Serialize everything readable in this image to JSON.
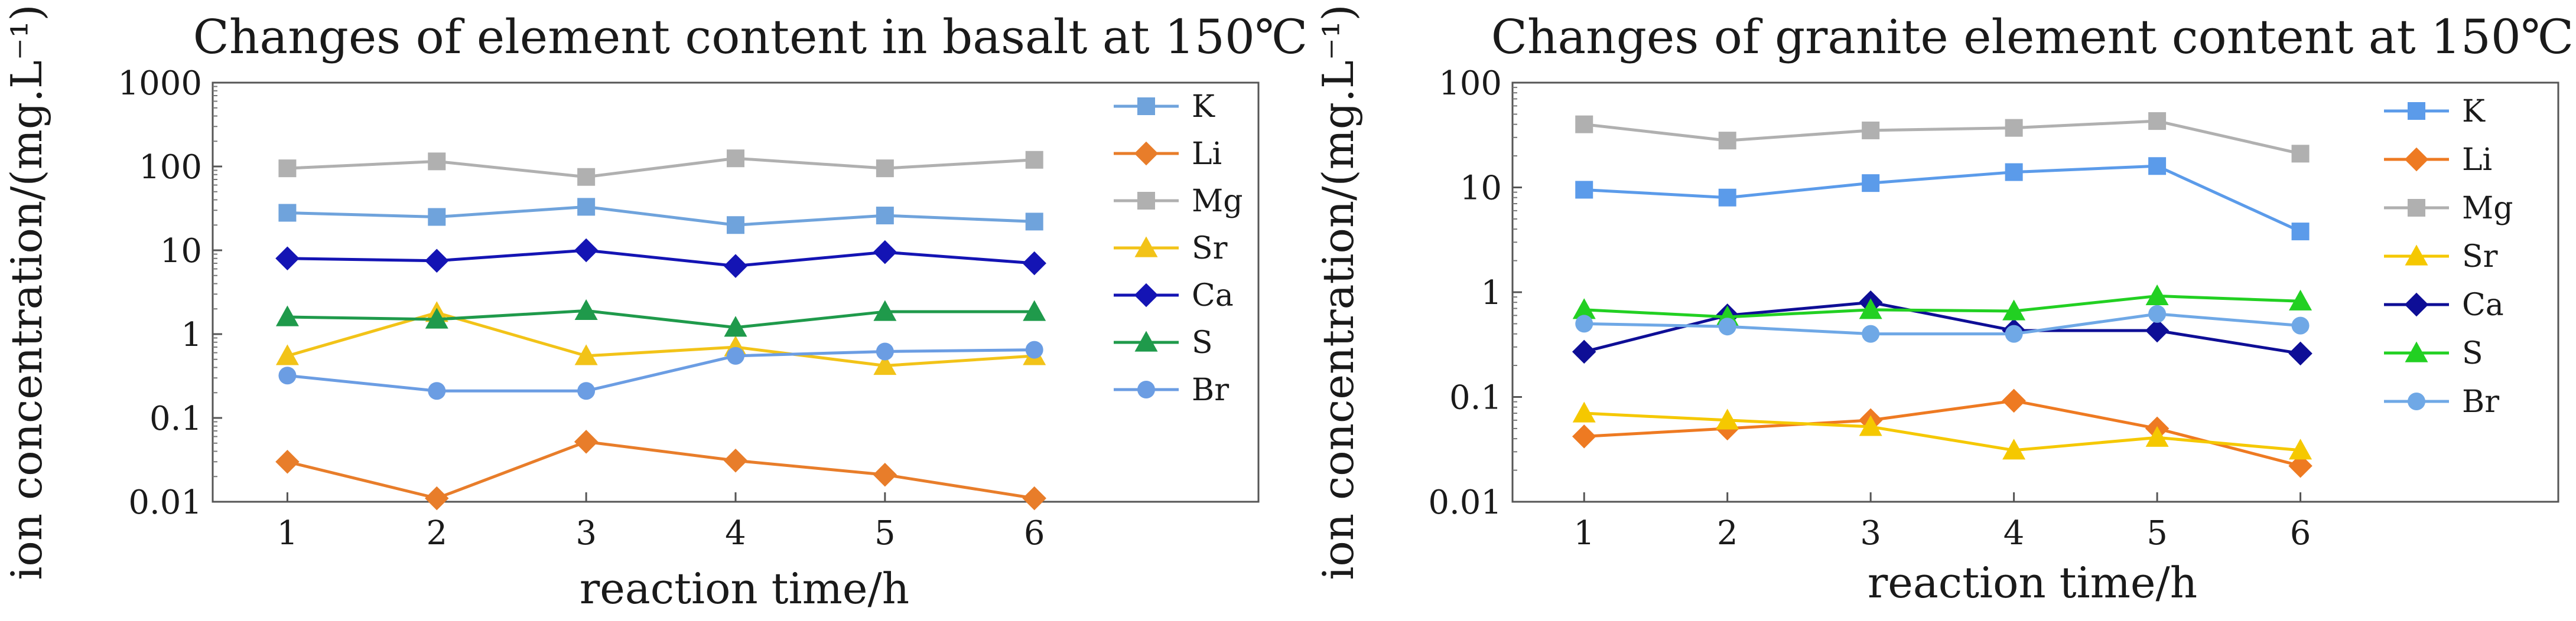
{
  "chart_data": [
    {
      "type": "line",
      "title": "Changes of element content in basalt at 150℃",
      "xlabel": "reaction time/h",
      "ylabel": "ion concentration/(mg.L⁻¹)",
      "y_scale": "log",
      "ylim": [
        0.01,
        1000
      ],
      "xlim": [
        0.5,
        7.5
      ],
      "x": [
        1,
        2,
        3,
        4,
        5,
        6
      ],
      "x_tick_labels": [
        "1",
        "2",
        "3",
        "4",
        "5",
        "6"
      ],
      "y_tick_values": [
        0.01,
        0.1,
        1,
        10,
        100,
        1000
      ],
      "y_tick_labels": [
        "0.01",
        "0.1",
        "1",
        "10",
        "100",
        "1000"
      ],
      "legend": "right",
      "grid": false,
      "series": [
        {
          "name": "K",
          "color": "#6fa3dc",
          "marker": "square",
          "values": [
            28,
            25,
            33,
            20,
            26,
            22
          ]
        },
        {
          "name": "Li",
          "color": "#e87d2a",
          "marker": "diamond",
          "values": [
            0.03,
            0.011,
            0.052,
            0.031,
            0.021,
            0.011
          ]
        },
        {
          "name": "Mg",
          "color": "#b0b0b0",
          "marker": "square",
          "values": [
            95,
            115,
            75,
            125,
            95,
            120
          ]
        },
        {
          "name": "Sr",
          "color": "#f2c318",
          "marker": "triangle",
          "values": [
            0.55,
            1.8,
            0.55,
            0.7,
            0.42,
            0.55
          ]
        },
        {
          "name": "Ca",
          "color": "#1414b4",
          "marker": "diamond",
          "values": [
            8,
            7.5,
            10,
            6.5,
            9.5,
            7
          ]
        },
        {
          "name": "S",
          "color": "#1f9a4b",
          "marker": "triangle",
          "values": [
            1.6,
            1.5,
            1.9,
            1.2,
            1.85,
            1.85
          ]
        },
        {
          "name": "Br",
          "color": "#6b9de3",
          "marker": "circle",
          "values": [
            0.32,
            0.21,
            0.21,
            0.55,
            0.62,
            0.65
          ]
        }
      ]
    },
    {
      "type": "line",
      "title": "Changes of granite element content at 150℃",
      "xlabel": "reaction time/h",
      "ylabel": "ion concentration/(mg.L⁻¹)",
      "y_scale": "log",
      "ylim": [
        0.01,
        100
      ],
      "xlim": [
        0.5,
        7.8
      ],
      "x": [
        1,
        2,
        3,
        4,
        5,
        6
      ],
      "x_tick_labels": [
        "1",
        "2",
        "3",
        "4",
        "5",
        "6"
      ],
      "y_tick_values": [
        0.01,
        0.1,
        1,
        10,
        100
      ],
      "y_tick_labels": [
        "0.01",
        "0.1",
        "1",
        "10",
        "100"
      ],
      "legend": "right",
      "grid": false,
      "series": [
        {
          "name": "K",
          "color": "#5b9bea",
          "marker": "square",
          "values": [
            9.5,
            8,
            11,
            14,
            16,
            3.8
          ]
        },
        {
          "name": "Li",
          "color": "#ee7a22",
          "marker": "diamond",
          "values": [
            0.042,
            0.05,
            0.06,
            0.092,
            0.05,
            0.022
          ]
        },
        {
          "name": "Mg",
          "color": "#b0b0b0",
          "marker": "square",
          "values": [
            40,
            28,
            35,
            37,
            43,
            21
          ]
        },
        {
          "name": "Sr",
          "color": "#f5c800",
          "marker": "triangle",
          "values": [
            0.07,
            0.06,
            0.052,
            0.031,
            0.041,
            0.031
          ]
        },
        {
          "name": "Ca",
          "color": "#0e0e96",
          "marker": "diamond",
          "values": [
            0.27,
            0.6,
            0.8,
            0.43,
            0.43,
            0.26
          ]
        },
        {
          "name": "S",
          "color": "#22d022",
          "marker": "triangle",
          "values": [
            0.68,
            0.58,
            0.68,
            0.66,
            0.92,
            0.82
          ]
        },
        {
          "name": "Br",
          "color": "#6fa8e6",
          "marker": "circle",
          "values": [
            0.5,
            0.47,
            0.4,
            0.4,
            0.62,
            0.48
          ]
        }
      ]
    }
  ]
}
